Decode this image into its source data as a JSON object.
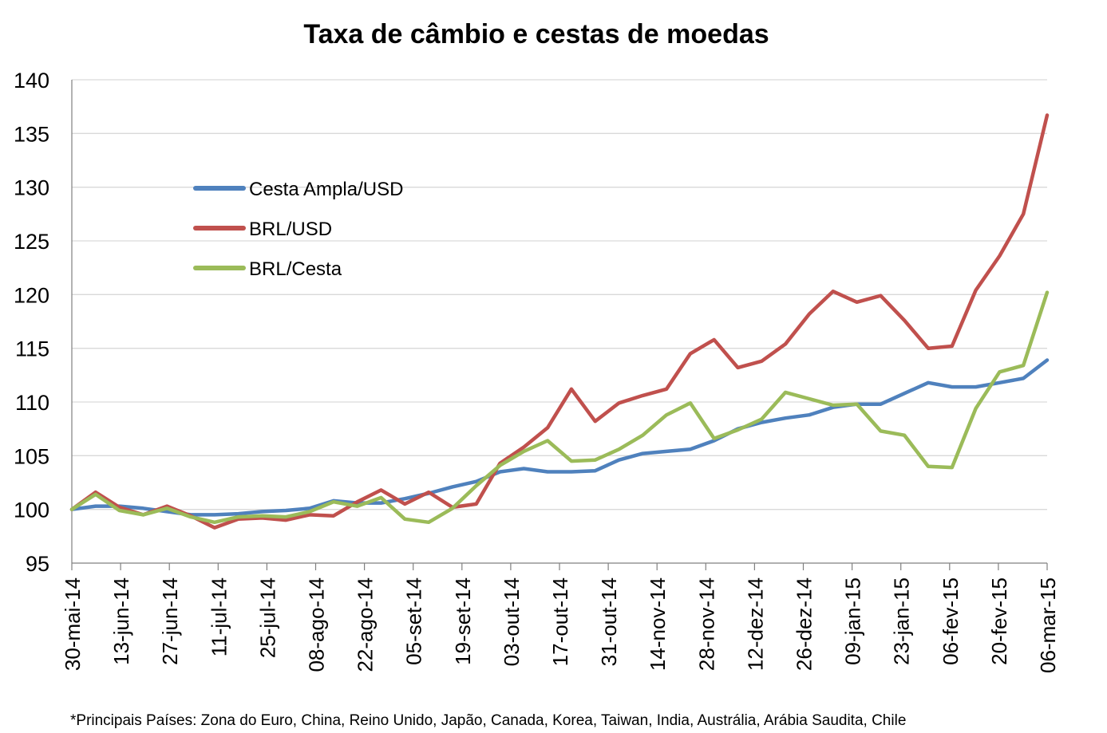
{
  "chart_data": {
    "type": "line",
    "title": "Taxa de câmbio e cestas de moedas",
    "footnote": "*Principais Países: Zona do Euro, China, Reino Unido, Japão, Canada, Korea, Taiwan, India, Austrália, Arábia Saudita, Chile",
    "ylim": [
      95,
      140
    ],
    "yticks": [
      95,
      100,
      105,
      110,
      115,
      120,
      125,
      130,
      135,
      140
    ],
    "grid": true,
    "legend_position": "upper-left",
    "x_tick_labels": [
      "30-mai-14",
      "13-jun-14",
      "27-jun-14",
      "11-jul-14",
      "25-jul-14",
      "08-ago-14",
      "22-ago-14",
      "05-set-14",
      "19-set-14",
      "03-out-14",
      "17-out-14",
      "31-out-14",
      "14-nov-14",
      "28-nov-14",
      "12-dez-14",
      "26-dez-14",
      "09-jan-15",
      "23-jan-15",
      "06-fev-15",
      "20-fev-15",
      "06-mar-15"
    ],
    "series": [
      {
        "name": "Cesta Ampla/USD",
        "color": "#4F81BD",
        "values": [
          100,
          100.3,
          100.3,
          100.1,
          99.8,
          99.5,
          99.5,
          99.6,
          99.8,
          99.9,
          100.1,
          100.8,
          100.6,
          100.6,
          101.0,
          101.5,
          102.1,
          102.6,
          103.5,
          103.8,
          103.5,
          103.5,
          103.6,
          104.6,
          105.2,
          105.4,
          105.6,
          106.4,
          107.5,
          108.1,
          108.5,
          108.8,
          109.5,
          109.8,
          109.8,
          110.8,
          111.8,
          111.4,
          111.4,
          111.8,
          112.2,
          113.9
        ]
      },
      {
        "name": "BRL/USD",
        "color": "#C0504D",
        "values": [
          100,
          101.6,
          100.2,
          99.5,
          100.3,
          99.4,
          98.3,
          99.1,
          99.2,
          99.0,
          99.5,
          99.4,
          100.7,
          101.8,
          100.5,
          101.6,
          100.2,
          100.5,
          104.3,
          105.8,
          107.6,
          111.2,
          108.2,
          109.9,
          110.6,
          111.2,
          114.5,
          115.8,
          113.2,
          113.8,
          115.4,
          118.2,
          120.3,
          119.3,
          119.9,
          117.6,
          115.0,
          115.2,
          120.4,
          123.6,
          127.5,
          136.7
        ]
      },
      {
        "name": "BRL/Cesta",
        "color": "#9BBB59",
        "values": [
          100,
          101.4,
          99.9,
          99.5,
          100.1,
          99.3,
          98.8,
          99.3,
          99.4,
          99.3,
          99.8,
          100.7,
          100.3,
          101.1,
          99.1,
          98.8,
          100.1,
          102.2,
          104.1,
          105.4,
          106.4,
          104.5,
          104.6,
          105.6,
          106.9,
          108.8,
          109.9,
          106.6,
          107.4,
          108.4,
          110.9,
          110.3,
          109.7,
          109.8,
          107.3,
          106.9,
          104.0,
          103.9,
          109.4,
          112.8,
          113.4,
          120.2
        ]
      }
    ]
  }
}
